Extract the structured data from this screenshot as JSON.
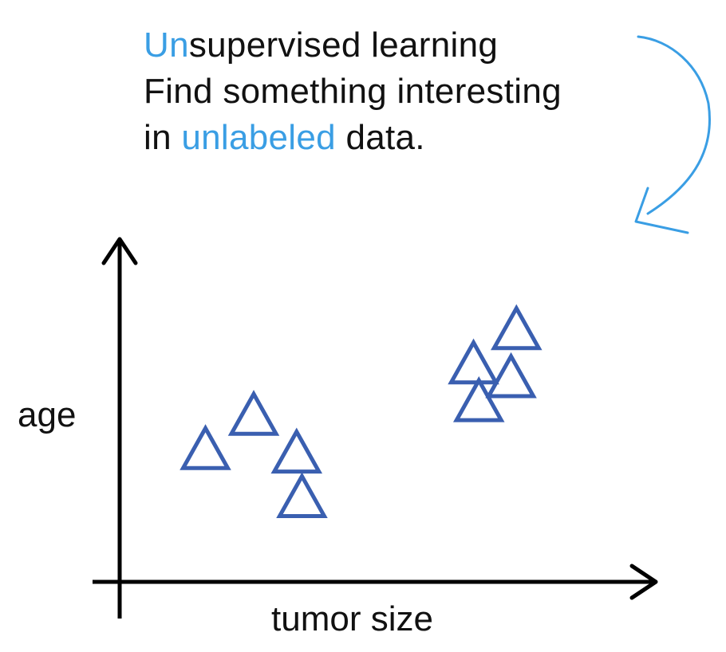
{
  "title": {
    "line1_accent": "Un",
    "line1_rest": "supervised learning",
    "line2": "Find something interesting",
    "line3_pre": "in ",
    "line3_accent": "unlabeled",
    "line3_post": " data."
  },
  "colors": {
    "accent": "#3a9ee4",
    "marker": "#3a5fb0",
    "axis": "#000000",
    "text": "#111111"
  },
  "chart_data": {
    "type": "scatter",
    "xlabel": "tumor size",
    "ylabel": "age",
    "grid": false,
    "marker": "triangle",
    "xlim": [
      0,
      10
    ],
    "ylim": [
      0,
      10
    ],
    "series": [
      {
        "points": [
          {
            "x": 1.6,
            "y": 3.9
          },
          {
            "x": 2.5,
            "y": 4.9
          },
          {
            "x": 3.3,
            "y": 3.8
          },
          {
            "x": 3.4,
            "y": 2.5
          },
          {
            "x": 6.6,
            "y": 6.4
          },
          {
            "x": 6.7,
            "y": 5.3
          },
          {
            "x": 7.3,
            "y": 6.0
          },
          {
            "x": 7.4,
            "y": 7.4
          }
        ]
      }
    ]
  }
}
